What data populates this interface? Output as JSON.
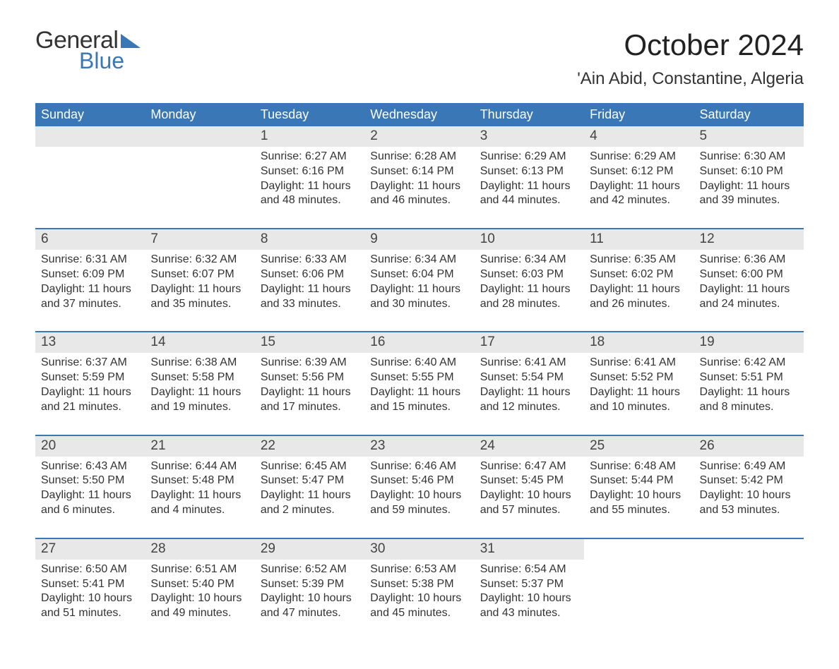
{
  "brand": {
    "word1": "General",
    "word2": "Blue"
  },
  "title": "October 2024",
  "location": "'Ain Abid, Constantine, Algeria",
  "colors": {
    "header_bg": "#3a77b6",
    "header_text": "#ffffff",
    "daynum_bg": "#e8e8e8",
    "row_border": "#3a77b6",
    "logo_blue": "#3a77b6"
  },
  "weekdays": [
    "Sunday",
    "Monday",
    "Tuesday",
    "Wednesday",
    "Thursday",
    "Friday",
    "Saturday"
  ],
  "weeks": [
    [
      {
        "n": "",
        "sunrise": "",
        "sunset": "",
        "daylight": ""
      },
      {
        "n": "",
        "sunrise": "",
        "sunset": "",
        "daylight": ""
      },
      {
        "n": "1",
        "sunrise": "Sunrise: 6:27 AM",
        "sunset": "Sunset: 6:16 PM",
        "daylight": "Daylight: 11 hours and 48 minutes."
      },
      {
        "n": "2",
        "sunrise": "Sunrise: 6:28 AM",
        "sunset": "Sunset: 6:14 PM",
        "daylight": "Daylight: 11 hours and 46 minutes."
      },
      {
        "n": "3",
        "sunrise": "Sunrise: 6:29 AM",
        "sunset": "Sunset: 6:13 PM",
        "daylight": "Daylight: 11 hours and 44 minutes."
      },
      {
        "n": "4",
        "sunrise": "Sunrise: 6:29 AM",
        "sunset": "Sunset: 6:12 PM",
        "daylight": "Daylight: 11 hours and 42 minutes."
      },
      {
        "n": "5",
        "sunrise": "Sunrise: 6:30 AM",
        "sunset": "Sunset: 6:10 PM",
        "daylight": "Daylight: 11 hours and 39 minutes."
      }
    ],
    [
      {
        "n": "6",
        "sunrise": "Sunrise: 6:31 AM",
        "sunset": "Sunset: 6:09 PM",
        "daylight": "Daylight: 11 hours and 37 minutes."
      },
      {
        "n": "7",
        "sunrise": "Sunrise: 6:32 AM",
        "sunset": "Sunset: 6:07 PM",
        "daylight": "Daylight: 11 hours and 35 minutes."
      },
      {
        "n": "8",
        "sunrise": "Sunrise: 6:33 AM",
        "sunset": "Sunset: 6:06 PM",
        "daylight": "Daylight: 11 hours and 33 minutes."
      },
      {
        "n": "9",
        "sunrise": "Sunrise: 6:34 AM",
        "sunset": "Sunset: 6:04 PM",
        "daylight": "Daylight: 11 hours and 30 minutes."
      },
      {
        "n": "10",
        "sunrise": "Sunrise: 6:34 AM",
        "sunset": "Sunset: 6:03 PM",
        "daylight": "Daylight: 11 hours and 28 minutes."
      },
      {
        "n": "11",
        "sunrise": "Sunrise: 6:35 AM",
        "sunset": "Sunset: 6:02 PM",
        "daylight": "Daylight: 11 hours and 26 minutes."
      },
      {
        "n": "12",
        "sunrise": "Sunrise: 6:36 AM",
        "sunset": "Sunset: 6:00 PM",
        "daylight": "Daylight: 11 hours and 24 minutes."
      }
    ],
    [
      {
        "n": "13",
        "sunrise": "Sunrise: 6:37 AM",
        "sunset": "Sunset: 5:59 PM",
        "daylight": "Daylight: 11 hours and 21 minutes."
      },
      {
        "n": "14",
        "sunrise": "Sunrise: 6:38 AM",
        "sunset": "Sunset: 5:58 PM",
        "daylight": "Daylight: 11 hours and 19 minutes."
      },
      {
        "n": "15",
        "sunrise": "Sunrise: 6:39 AM",
        "sunset": "Sunset: 5:56 PM",
        "daylight": "Daylight: 11 hours and 17 minutes."
      },
      {
        "n": "16",
        "sunrise": "Sunrise: 6:40 AM",
        "sunset": "Sunset: 5:55 PM",
        "daylight": "Daylight: 11 hours and 15 minutes."
      },
      {
        "n": "17",
        "sunrise": "Sunrise: 6:41 AM",
        "sunset": "Sunset: 5:54 PM",
        "daylight": "Daylight: 11 hours and 12 minutes."
      },
      {
        "n": "18",
        "sunrise": "Sunrise: 6:41 AM",
        "sunset": "Sunset: 5:52 PM",
        "daylight": "Daylight: 11 hours and 10 minutes."
      },
      {
        "n": "19",
        "sunrise": "Sunrise: 6:42 AM",
        "sunset": "Sunset: 5:51 PM",
        "daylight": "Daylight: 11 hours and 8 minutes."
      }
    ],
    [
      {
        "n": "20",
        "sunrise": "Sunrise: 6:43 AM",
        "sunset": "Sunset: 5:50 PM",
        "daylight": "Daylight: 11 hours and 6 minutes."
      },
      {
        "n": "21",
        "sunrise": "Sunrise: 6:44 AM",
        "sunset": "Sunset: 5:48 PM",
        "daylight": "Daylight: 11 hours and 4 minutes."
      },
      {
        "n": "22",
        "sunrise": "Sunrise: 6:45 AM",
        "sunset": "Sunset: 5:47 PM",
        "daylight": "Daylight: 11 hours and 2 minutes."
      },
      {
        "n": "23",
        "sunrise": "Sunrise: 6:46 AM",
        "sunset": "Sunset: 5:46 PM",
        "daylight": "Daylight: 10 hours and 59 minutes."
      },
      {
        "n": "24",
        "sunrise": "Sunrise: 6:47 AM",
        "sunset": "Sunset: 5:45 PM",
        "daylight": "Daylight: 10 hours and 57 minutes."
      },
      {
        "n": "25",
        "sunrise": "Sunrise: 6:48 AM",
        "sunset": "Sunset: 5:44 PM",
        "daylight": "Daylight: 10 hours and 55 minutes."
      },
      {
        "n": "26",
        "sunrise": "Sunrise: 6:49 AM",
        "sunset": "Sunset: 5:42 PM",
        "daylight": "Daylight: 10 hours and 53 minutes."
      }
    ],
    [
      {
        "n": "27",
        "sunrise": "Sunrise: 6:50 AM",
        "sunset": "Sunset: 5:41 PM",
        "daylight": "Daylight: 10 hours and 51 minutes."
      },
      {
        "n": "28",
        "sunrise": "Sunrise: 6:51 AM",
        "sunset": "Sunset: 5:40 PM",
        "daylight": "Daylight: 10 hours and 49 minutes."
      },
      {
        "n": "29",
        "sunrise": "Sunrise: 6:52 AM",
        "sunset": "Sunset: 5:39 PM",
        "daylight": "Daylight: 10 hours and 47 minutes."
      },
      {
        "n": "30",
        "sunrise": "Sunrise: 6:53 AM",
        "sunset": "Sunset: 5:38 PM",
        "daylight": "Daylight: 10 hours and 45 minutes."
      },
      {
        "n": "31",
        "sunrise": "Sunrise: 6:54 AM",
        "sunset": "Sunset: 5:37 PM",
        "daylight": "Daylight: 10 hours and 43 minutes."
      },
      {
        "n": "",
        "sunrise": "",
        "sunset": "",
        "daylight": ""
      },
      {
        "n": "",
        "sunrise": "",
        "sunset": "",
        "daylight": ""
      }
    ]
  ]
}
